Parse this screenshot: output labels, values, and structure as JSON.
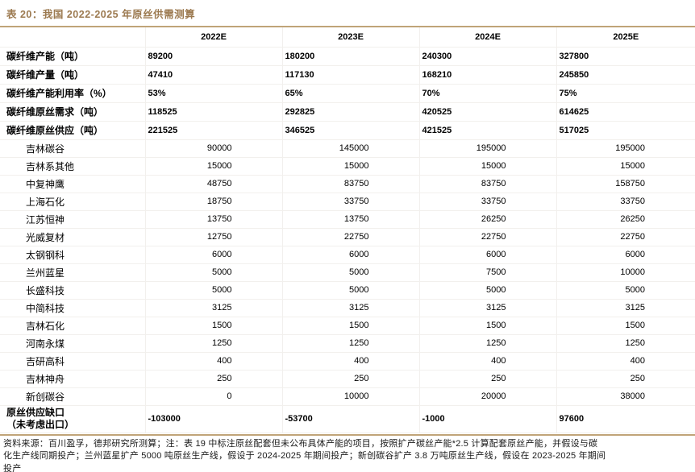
{
  "title": "表 20：我国 2022-2025 年原丝供需测算",
  "colors": {
    "accent": "#9c7a50",
    "rule": "#c0a478"
  },
  "table": {
    "columns": [
      "",
      "2022E",
      "2023E",
      "2024E",
      "2025E"
    ],
    "summary_rows": [
      {
        "label": "碳纤维产能（吨）",
        "values": [
          "89200",
          "180200",
          "240300",
          "327800"
        ]
      },
      {
        "label": "碳纤维产量（吨）",
        "values": [
          "47410",
          "117130",
          "168210",
          "245850"
        ]
      },
      {
        "label": "碳纤维产能利用率（%）",
        "values": [
          "53%",
          "65%",
          "70%",
          "75%"
        ]
      },
      {
        "label": "碳纤维原丝需求（吨）",
        "values": [
          "118525",
          "292825",
          "420525",
          "614625"
        ]
      },
      {
        "label": "碳纤维原丝供应（吨）",
        "values": [
          "221525",
          "346525",
          "421525",
          "517025"
        ]
      }
    ],
    "company_rows": [
      {
        "label": "吉林碳谷",
        "values": [
          "90000",
          "145000",
          "195000",
          "195000"
        ]
      },
      {
        "label": "吉林系其他",
        "values": [
          "15000",
          "15000",
          "15000",
          "15000"
        ]
      },
      {
        "label": "中复神鹰",
        "values": [
          "48750",
          "83750",
          "83750",
          "158750"
        ]
      },
      {
        "label": "上海石化",
        "values": [
          "18750",
          "33750",
          "33750",
          "33750"
        ]
      },
      {
        "label": "江苏恒神",
        "values": [
          "13750",
          "13750",
          "26250",
          "26250"
        ]
      },
      {
        "label": "光威复材",
        "values": [
          "12750",
          "22750",
          "22750",
          "22750"
        ]
      },
      {
        "label": "太钢钢科",
        "values": [
          "6000",
          "6000",
          "6000",
          "6000"
        ]
      },
      {
        "label": "兰州蓝星",
        "values": [
          "5000",
          "5000",
          "7500",
          "10000"
        ]
      },
      {
        "label": "长盛科技",
        "values": [
          "5000",
          "5000",
          "5000",
          "5000"
        ]
      },
      {
        "label": "中简科技",
        "values": [
          "3125",
          "3125",
          "3125",
          "3125"
        ]
      },
      {
        "label": "吉林石化",
        "values": [
          "1500",
          "1500",
          "1500",
          "1500"
        ]
      },
      {
        "label": "河南永煤",
        "values": [
          "1250",
          "1250",
          "1250",
          "1250"
        ]
      },
      {
        "label": "吉研高科",
        "values": [
          "400",
          "400",
          "400",
          "400"
        ]
      },
      {
        "label": "吉林神舟",
        "values": [
          "250",
          "250",
          "250",
          "250"
        ]
      },
      {
        "label": "新创碳谷",
        "values": [
          "0",
          "10000",
          "20000",
          "38000"
        ]
      }
    ],
    "gap_row": {
      "label_line1": "原丝供应缺口",
      "label_line2": "（未考虑出口）",
      "values": [
        "-103000",
        "-53700",
        "-1000",
        "97600"
      ]
    }
  },
  "footnote": {
    "lines": [
      "资料来源：百川盈孚，德邦研究所测算；注：表 19 中标注原丝配套但未公布具体产能的项目，按照扩产碳丝产能*2.5 计算配套原丝产能，并假设与碳",
      "化生产线同期投产；兰州蓝星扩产 5000 吨原丝生产线，假设于 2024-2025 年期间投产；新创碳谷扩产 3.8 万吨原丝生产线，假设在 2023-2025 年期间",
      "投产"
    ]
  }
}
